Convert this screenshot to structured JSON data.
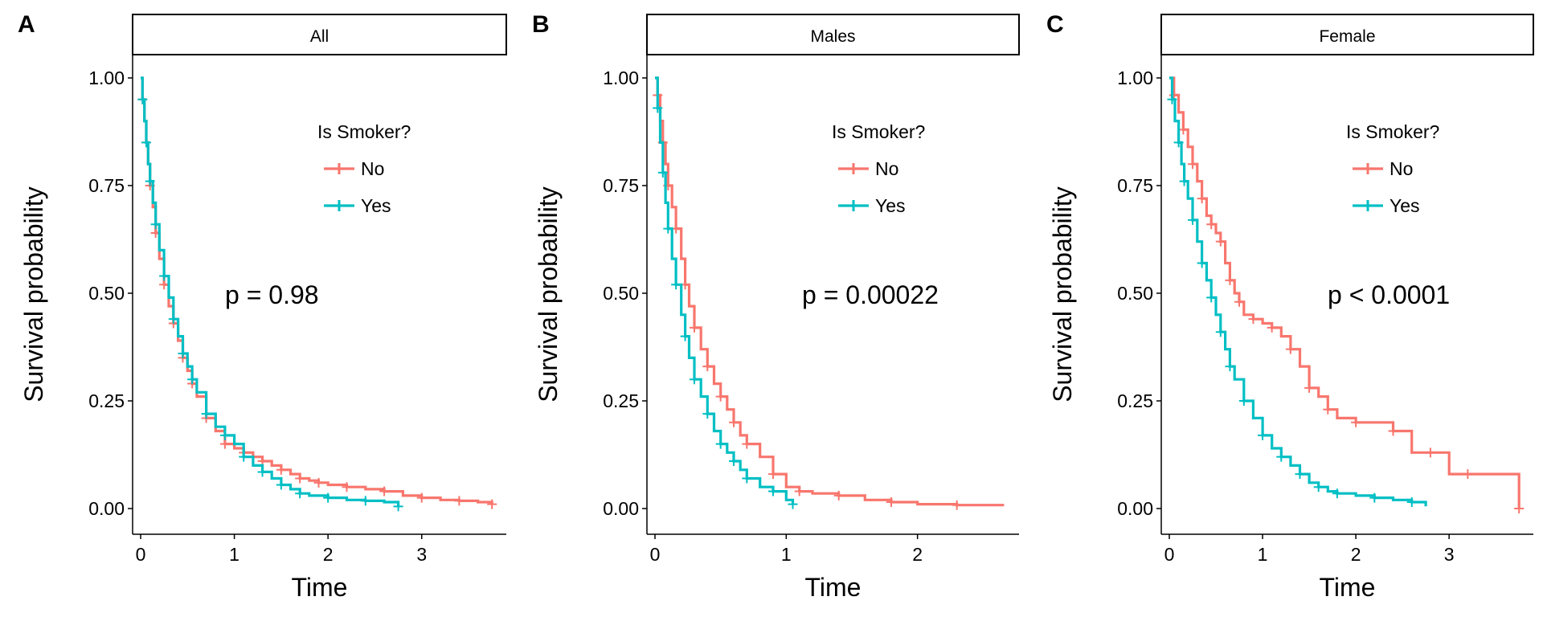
{
  "chart_data": [
    {
      "type": "line",
      "panel_label": "A",
      "strip_title": "All",
      "xlabel": "Time",
      "ylabel": "Survival probability",
      "xlim": [
        0,
        3.8
      ],
      "ylim": [
        0,
        1
      ],
      "x_ticks": [
        0,
        1,
        2,
        3
      ],
      "y_ticks": [
        0,
        0.25,
        0.5,
        0.75,
        1
      ],
      "y_tick_labels": [
        "0.00",
        "0.25",
        "0.50",
        "0.75",
        "1.00"
      ],
      "legend_title": "Is Smoker?",
      "legend_position": "top-right",
      "annotation": "p = 0.98",
      "colors": {
        "No": "#F8766D",
        "Yes": "#00BFC4"
      },
      "series": [
        {
          "name": "No",
          "x": [
            0,
            0.02,
            0.04,
            0.06,
            0.08,
            0.1,
            0.13,
            0.16,
            0.2,
            0.25,
            0.3,
            0.35,
            0.4,
            0.45,
            0.5,
            0.55,
            0.6,
            0.7,
            0.8,
            0.9,
            1.0,
            1.1,
            1.2,
            1.3,
            1.4,
            1.5,
            1.6,
            1.7,
            1.8,
            1.9,
            2.0,
            2.2,
            2.4,
            2.6,
            2.8,
            3.0,
            3.2,
            3.4,
            3.6,
            3.75
          ],
          "y": [
            1.0,
            0.95,
            0.9,
            0.85,
            0.8,
            0.75,
            0.7,
            0.64,
            0.58,
            0.52,
            0.47,
            0.43,
            0.39,
            0.35,
            0.32,
            0.29,
            0.26,
            0.21,
            0.18,
            0.15,
            0.14,
            0.13,
            0.12,
            0.11,
            0.1,
            0.09,
            0.08,
            0.07,
            0.065,
            0.06,
            0.055,
            0.05,
            0.045,
            0.04,
            0.03,
            0.025,
            0.02,
            0.018,
            0.015,
            0.01
          ]
        },
        {
          "name": "Yes",
          "x": [
            0,
            0.02,
            0.04,
            0.06,
            0.08,
            0.1,
            0.13,
            0.16,
            0.2,
            0.25,
            0.3,
            0.35,
            0.4,
            0.45,
            0.5,
            0.55,
            0.6,
            0.7,
            0.8,
            0.9,
            1.0,
            1.1,
            1.2,
            1.3,
            1.4,
            1.5,
            1.6,
            1.7,
            1.8,
            2.0,
            2.2,
            2.4,
            2.6,
            2.75
          ],
          "y": [
            1.0,
            0.95,
            0.9,
            0.85,
            0.8,
            0.76,
            0.71,
            0.66,
            0.6,
            0.54,
            0.49,
            0.44,
            0.4,
            0.36,
            0.33,
            0.3,
            0.27,
            0.22,
            0.19,
            0.17,
            0.15,
            0.12,
            0.1,
            0.085,
            0.07,
            0.055,
            0.045,
            0.035,
            0.03,
            0.025,
            0.02,
            0.018,
            0.015,
            0.005
          ]
        }
      ]
    },
    {
      "type": "line",
      "panel_label": "B",
      "strip_title": "Males",
      "xlabel": "Time",
      "ylabel": "Survival probability",
      "xlim": [
        0,
        2.7
      ],
      "ylim": [
        0,
        1
      ],
      "x_ticks": [
        0,
        1,
        2
      ],
      "y_ticks": [
        0,
        0.25,
        0.5,
        0.75,
        1
      ],
      "y_tick_labels": [
        "0.00",
        "0.25",
        "0.50",
        "0.75",
        "1.00"
      ],
      "legend_title": "Is Smoker?",
      "legend_position": "top-right",
      "annotation": "p = 0.00022",
      "colors": {
        "No": "#F8766D",
        "Yes": "#00BFC4"
      },
      "series": [
        {
          "name": "No",
          "x": [
            0,
            0.02,
            0.04,
            0.06,
            0.08,
            0.1,
            0.13,
            0.16,
            0.2,
            0.23,
            0.26,
            0.3,
            0.35,
            0.4,
            0.45,
            0.5,
            0.55,
            0.6,
            0.65,
            0.7,
            0.8,
            0.9,
            1.0,
            1.1,
            1.2,
            1.4,
            1.6,
            1.8,
            2.0,
            2.3,
            2.65
          ],
          "y": [
            1.0,
            0.96,
            0.9,
            0.85,
            0.8,
            0.75,
            0.7,
            0.65,
            0.58,
            0.52,
            0.47,
            0.42,
            0.37,
            0.33,
            0.29,
            0.26,
            0.23,
            0.2,
            0.17,
            0.15,
            0.12,
            0.08,
            0.05,
            0.04,
            0.035,
            0.03,
            0.02,
            0.015,
            0.01,
            0.008,
            0.005
          ]
        },
        {
          "name": "Yes",
          "x": [
            0,
            0.02,
            0.04,
            0.06,
            0.08,
            0.1,
            0.13,
            0.16,
            0.2,
            0.23,
            0.26,
            0.3,
            0.35,
            0.4,
            0.45,
            0.5,
            0.55,
            0.6,
            0.65,
            0.7,
            0.8,
            0.9,
            1.0,
            1.05
          ],
          "y": [
            1.0,
            0.93,
            0.85,
            0.78,
            0.71,
            0.65,
            0.58,
            0.52,
            0.45,
            0.4,
            0.35,
            0.3,
            0.26,
            0.22,
            0.18,
            0.15,
            0.13,
            0.11,
            0.09,
            0.07,
            0.05,
            0.04,
            0.02,
            0.01
          ]
        }
      ]
    },
    {
      "type": "line",
      "panel_label": "C",
      "strip_title": "Female",
      "xlabel": "Time",
      "ylabel": "Survival probability",
      "xlim": [
        0,
        3.8
      ],
      "ylim": [
        0,
        1
      ],
      "x_ticks": [
        0,
        1,
        2,
        3
      ],
      "y_ticks": [
        0,
        0.25,
        0.5,
        0.75,
        1
      ],
      "y_tick_labels": [
        "0.00",
        "0.25",
        "0.50",
        "0.75",
        "1.00"
      ],
      "legend_title": "Is Smoker?",
      "legend_position": "top-right",
      "annotation": "p < 0.0001",
      "colors": {
        "No": "#F8766D",
        "Yes": "#00BFC4"
      },
      "series": [
        {
          "name": "No",
          "x": [
            0,
            0.05,
            0.1,
            0.15,
            0.2,
            0.25,
            0.3,
            0.35,
            0.4,
            0.45,
            0.5,
            0.55,
            0.6,
            0.65,
            0.7,
            0.75,
            0.8,
            0.9,
            1.0,
            1.1,
            1.2,
            1.3,
            1.4,
            1.5,
            1.6,
            1.7,
            1.8,
            2.0,
            2.2,
            2.4,
            2.6,
            2.8,
            3.0,
            3.2,
            3.5,
            3.75
          ],
          "y": [
            1.0,
            0.96,
            0.92,
            0.88,
            0.84,
            0.8,
            0.76,
            0.72,
            0.68,
            0.66,
            0.64,
            0.62,
            0.57,
            0.53,
            0.5,
            0.48,
            0.45,
            0.44,
            0.43,
            0.42,
            0.4,
            0.37,
            0.33,
            0.28,
            0.26,
            0.23,
            0.21,
            0.2,
            0.2,
            0.18,
            0.13,
            0.13,
            0.08,
            0.08,
            0.08,
            0.0
          ]
        },
        {
          "name": "Yes",
          "x": [
            0,
            0.03,
            0.06,
            0.1,
            0.13,
            0.16,
            0.2,
            0.25,
            0.3,
            0.35,
            0.4,
            0.45,
            0.5,
            0.55,
            0.6,
            0.65,
            0.7,
            0.8,
            0.9,
            1.0,
            1.1,
            1.2,
            1.3,
            1.4,
            1.5,
            1.6,
            1.7,
            1.8,
            2.0,
            2.2,
            2.4,
            2.6,
            2.75
          ],
          "y": [
            1.0,
            0.95,
            0.9,
            0.85,
            0.8,
            0.76,
            0.72,
            0.67,
            0.62,
            0.57,
            0.53,
            0.49,
            0.45,
            0.41,
            0.37,
            0.33,
            0.3,
            0.25,
            0.21,
            0.17,
            0.14,
            0.12,
            0.1,
            0.08,
            0.06,
            0.05,
            0.04,
            0.035,
            0.03,
            0.025,
            0.02,
            0.015,
            0.005
          ]
        }
      ]
    }
  ]
}
